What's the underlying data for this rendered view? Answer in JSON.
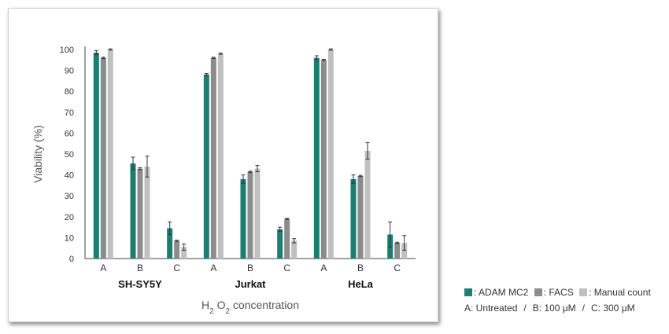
{
  "chart_data": {
    "type": "bar",
    "ylabel": "Viability (%)",
    "xlabel_parts": [
      "H",
      "2",
      " O",
      "2",
      " concentration"
    ],
    "ylim": [
      0,
      100
    ],
    "yticks": [
      "0",
      "10",
      "20",
      "30",
      "40",
      "50",
      "60",
      "70",
      "80",
      "90",
      "100"
    ],
    "groups": [
      {
        "label": "SH-SY5Y",
        "categories": [
          "A",
          "B",
          "C"
        ]
      },
      {
        "label": "Jurkat",
        "categories": [
          "A",
          "B",
          "C"
        ]
      },
      {
        "label": "HeLa",
        "categories": [
          "A",
          "B",
          "C"
        ]
      }
    ],
    "series": [
      {
        "name": "ADAM MC2",
        "color": "#1a7f72",
        "values": [
          98.5,
          45.5,
          14.5,
          88,
          38,
          14,
          96,
          38,
          11.5
        ],
        "errors": [
          1,
          3,
          3,
          0.5,
          2,
          1,
          1,
          2,
          6
        ]
      },
      {
        "name": "FACS",
        "color": "#8c8c8c",
        "values": [
          96,
          43,
          8.5,
          96,
          41.5,
          19,
          95,
          39.5,
          7.5
        ],
        "errors": [
          0.3,
          0.5,
          0.3,
          0.3,
          0.3,
          0.3,
          0.3,
          0.3,
          0.3
        ]
      },
      {
        "name": "Manual count",
        "color": "#c0c0c0",
        "values": [
          100,
          44,
          5.5,
          98,
          43,
          8.5,
          100,
          51.5,
          7.5
        ],
        "errors": [
          0.3,
          5,
          1.5,
          0.3,
          1.5,
          1,
          0.3,
          4,
          3.5
        ]
      }
    ]
  },
  "legend": {
    "entries": [
      {
        "label": ": ADAM MC2",
        "color": "#1a7f72"
      },
      {
        "label": ": FACS",
        "color": "#8c8c8c"
      },
      {
        "label": ": Manual count",
        "color": "#c0c0c0"
      }
    ],
    "notes": [
      "A: Untreated",
      "B: 100 μM",
      "C: 300 μM"
    ],
    "separator": "/"
  }
}
